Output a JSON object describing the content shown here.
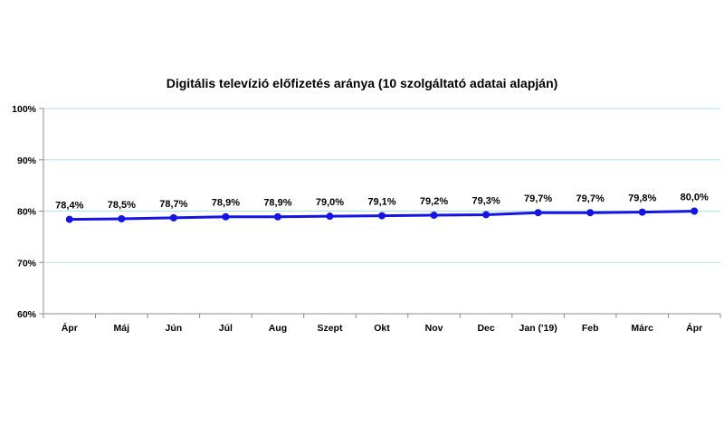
{
  "chart_data": {
    "type": "line",
    "title": "Digitális televízió előfizetés aránya (10 szolgáltató adatai alapján)",
    "categories": [
      "Ápr",
      "Máj",
      "Jún",
      "Júl",
      "Aug",
      "Szept",
      "Okt",
      "Nov",
      "Dec",
      "Jan ('19)",
      "Feb",
      "Márc",
      "Ápr"
    ],
    "series": [
      {
        "values": [
          78.4,
          78.5,
          78.7,
          78.9,
          78.9,
          79.0,
          79.1,
          79.2,
          79.3,
          79.7,
          79.7,
          79.8,
          80.0
        ],
        "labels": [
          "78,4%",
          "78,5%",
          "78,7%",
          "78,9%",
          "78,9%",
          "79,0%",
          "79,1%",
          "79,2%",
          "79,3%",
          "79,7%",
          "79,7%",
          "79,8%",
          "80,0%"
        ],
        "color": "#1414e6"
      }
    ],
    "ylim": [
      60,
      100
    ],
    "yticks": [
      "60%",
      "70%",
      "80%",
      "90%",
      "100%"
    ],
    "ytick_values": [
      60,
      70,
      80,
      90,
      100
    ],
    "grid": true,
    "gridline_color": "#a9e3f0",
    "xlabel": "",
    "ylabel": ""
  }
}
